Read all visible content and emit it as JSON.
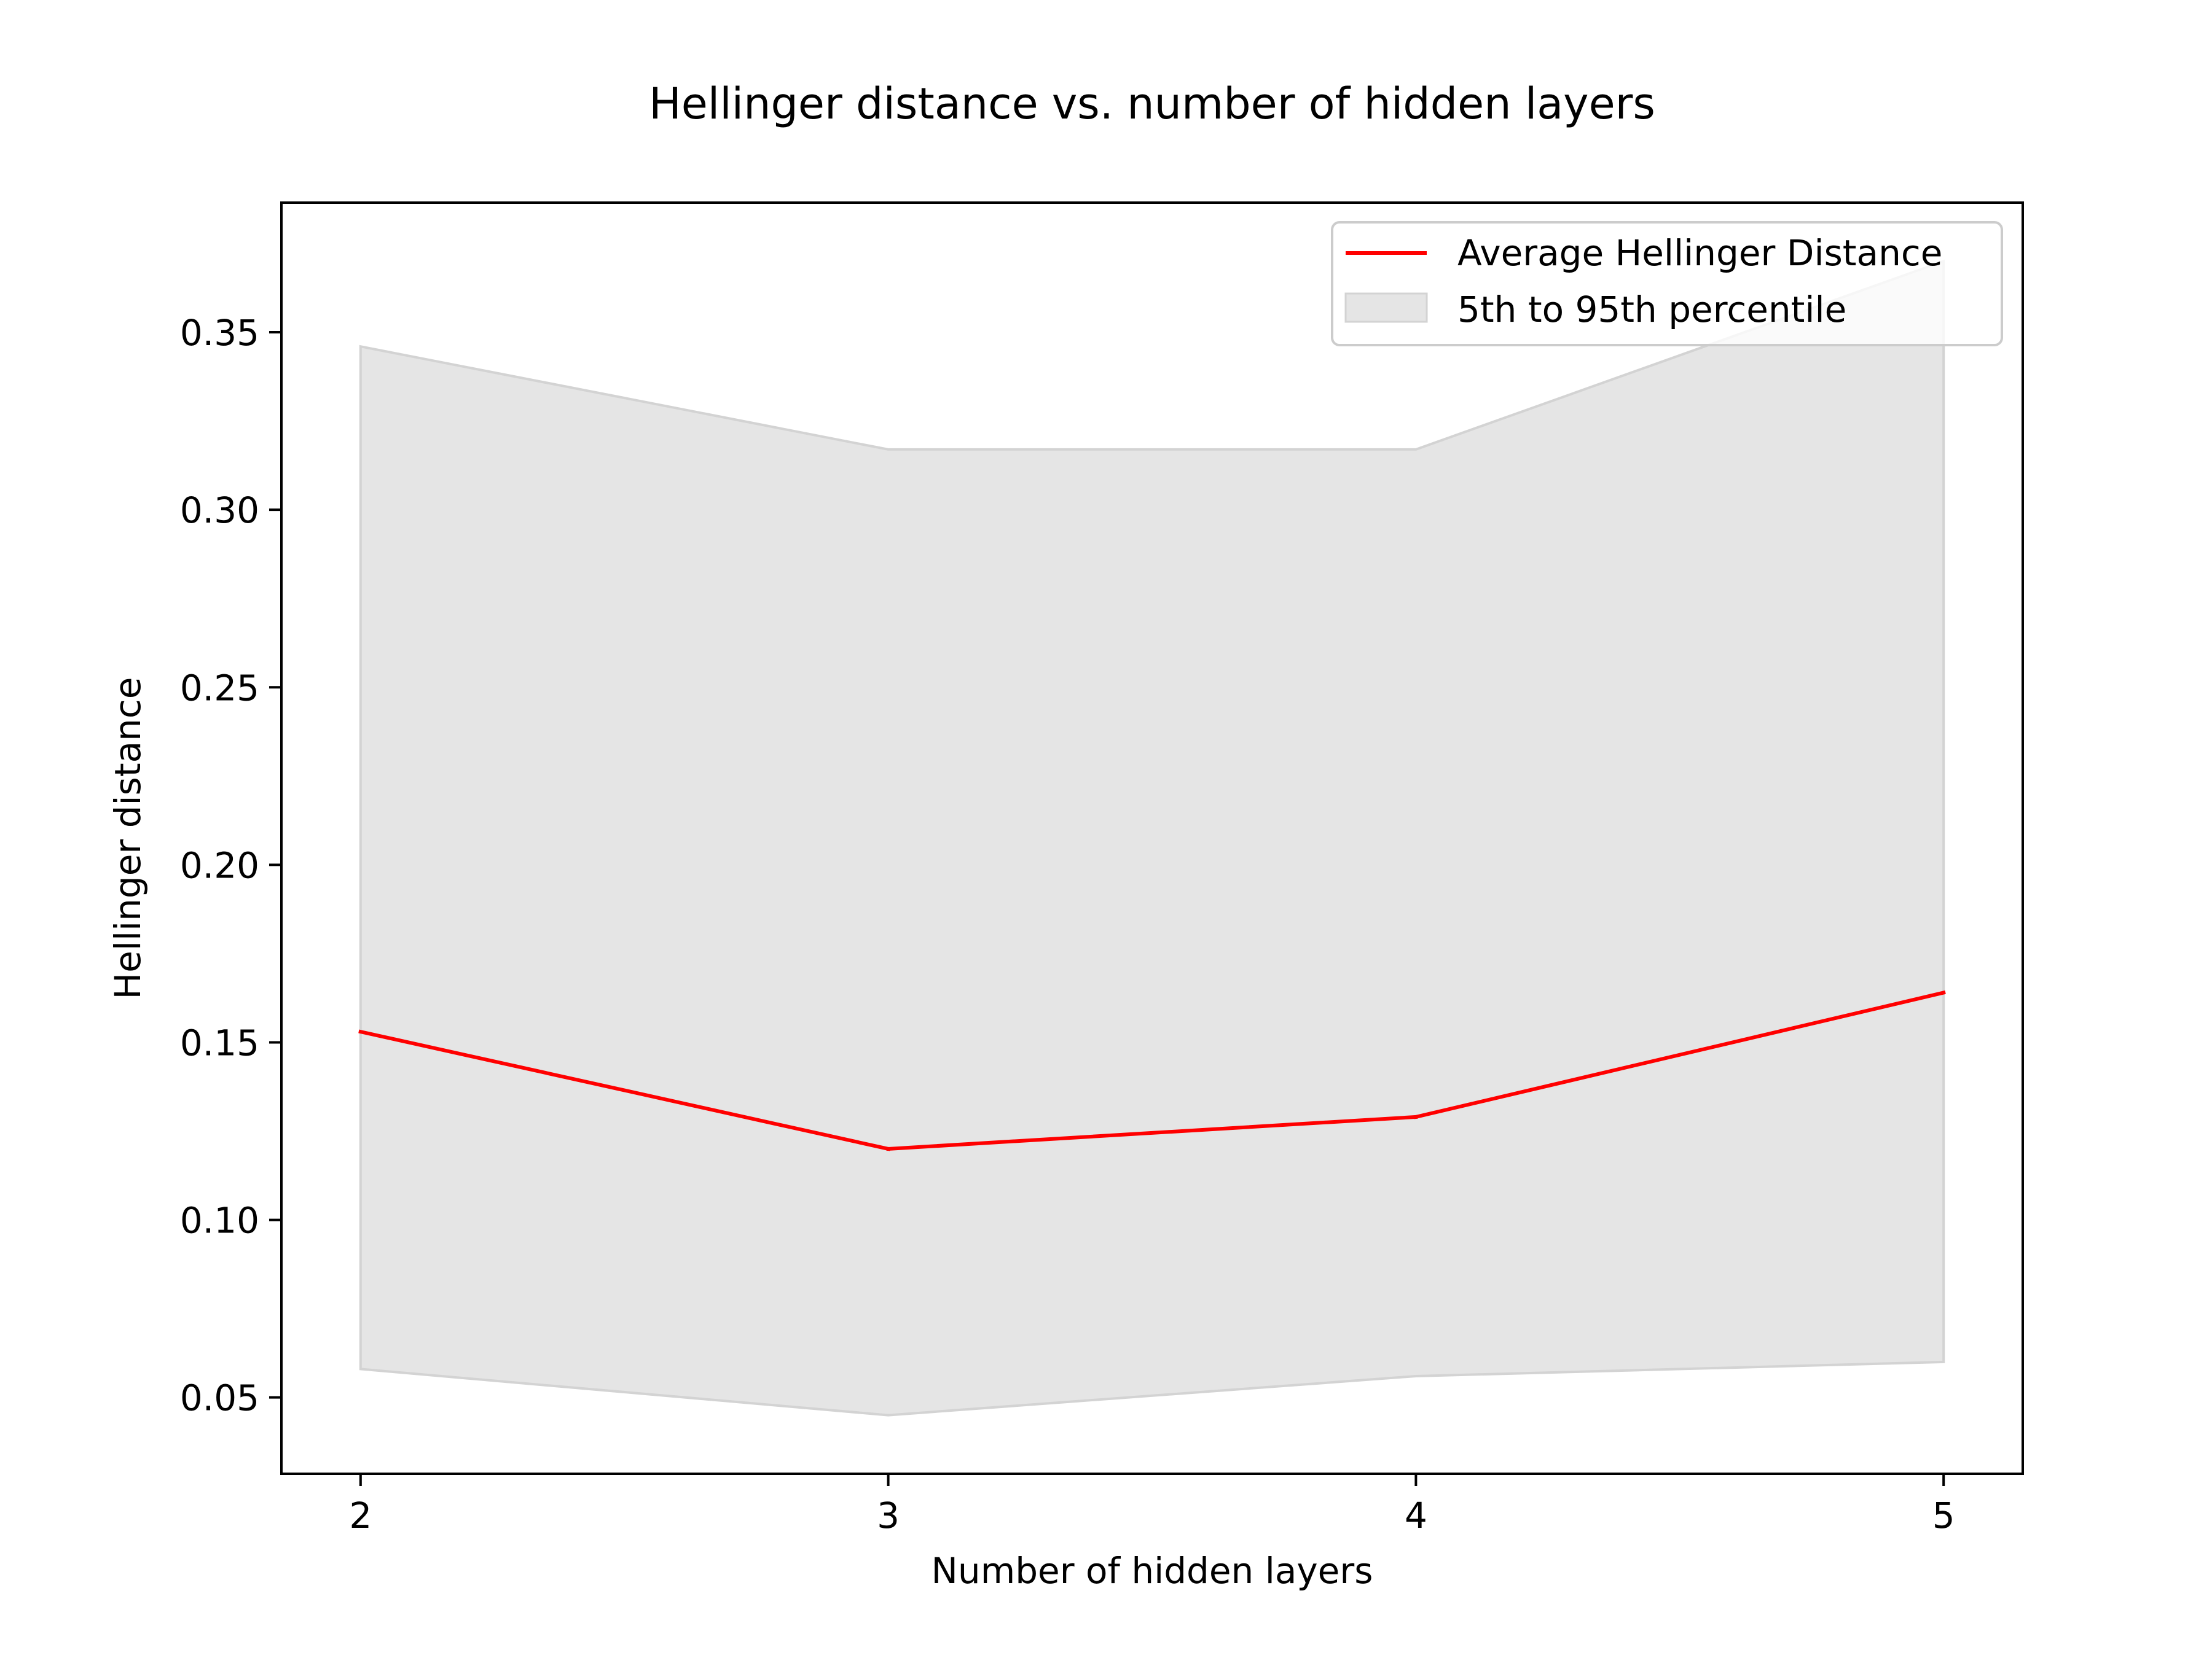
{
  "chart_data": {
    "type": "line",
    "title": "Hellinger distance vs. number of hidden layers",
    "xlabel": "Number of hidden layers",
    "ylabel": "Hellinger distance",
    "x": [
      2,
      3,
      4,
      5
    ],
    "xticks": [
      "2",
      "3",
      "4",
      "5"
    ],
    "xlim": [
      1.85,
      5.15
    ],
    "yticks": [
      "0.05",
      "0.10",
      "0.15",
      "0.20",
      "0.25",
      "0.30",
      "0.35"
    ],
    "ylim": [
      0.0285,
      0.3865
    ],
    "series": [
      {
        "name": "Average Hellinger Distance",
        "type": "line",
        "color": "#ff0000",
        "values": [
          0.153,
          0.12,
          0.129,
          0.164
        ]
      },
      {
        "name": "5th to 95th percentile",
        "type": "band",
        "color": "#d3d3d3",
        "lower": [
          0.058,
          0.045,
          0.056,
          0.06
        ],
        "upper": [
          0.346,
          0.317,
          0.317,
          0.37
        ]
      }
    ],
    "legend_position": "upper right",
    "grid": false
  }
}
